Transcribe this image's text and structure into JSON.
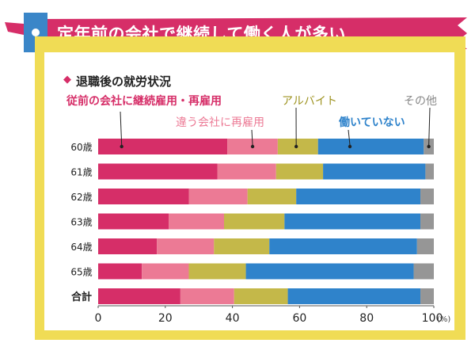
{
  "banner": {
    "title": "定年前の会社で継続して働く人が多い"
  },
  "section": {
    "title": "退職後の就労状況",
    "marker": "◆"
  },
  "colors": {
    "banner_bg": "#d62e68",
    "banner_accent": "#3a86c8",
    "frame": "#f0dc55",
    "same_company": "#d62e68",
    "other_company": "#ec7a95",
    "part_time": "#c4b849",
    "not_working": "#2f83cb",
    "other": "#969696"
  },
  "chart_data": {
    "type": "bar",
    "orientation": "horizontal",
    "stacked": true,
    "title": "退職後の就労状況",
    "categories": [
      "60歳",
      "61歳",
      "62歳",
      "63歳",
      "64歳",
      "65歳",
      "合計"
    ],
    "xlim": [
      0,
      100
    ],
    "x_ticks": [
      "0",
      "20",
      "40",
      "60",
      "80",
      "100"
    ],
    "x_unit": "(%)",
    "grid": false,
    "series": [
      {
        "name": "従前の会社に継続雇用・再雇用",
        "color": "#d62e68",
        "values": [
          38.5,
          35.5,
          27,
          21,
          17.5,
          13,
          24.5
        ]
      },
      {
        "name": "違う会社に再雇用",
        "color": "#ec7a95",
        "values": [
          15,
          17.5,
          17.5,
          16.5,
          17,
          14,
          16
        ]
      },
      {
        "name": "アルバイト",
        "color": "#c4b849",
        "values": [
          12,
          14,
          14.5,
          18,
          16.5,
          17,
          16
        ]
      },
      {
        "name": "働いていない",
        "color": "#2f83cb",
        "values": [
          31.5,
          30.5,
          37,
          40.5,
          44,
          50,
          39.5
        ]
      },
      {
        "name": "その他",
        "color": "#969696",
        "values": [
          3,
          2.5,
          4,
          4,
          5,
          6,
          4
        ]
      }
    ]
  }
}
